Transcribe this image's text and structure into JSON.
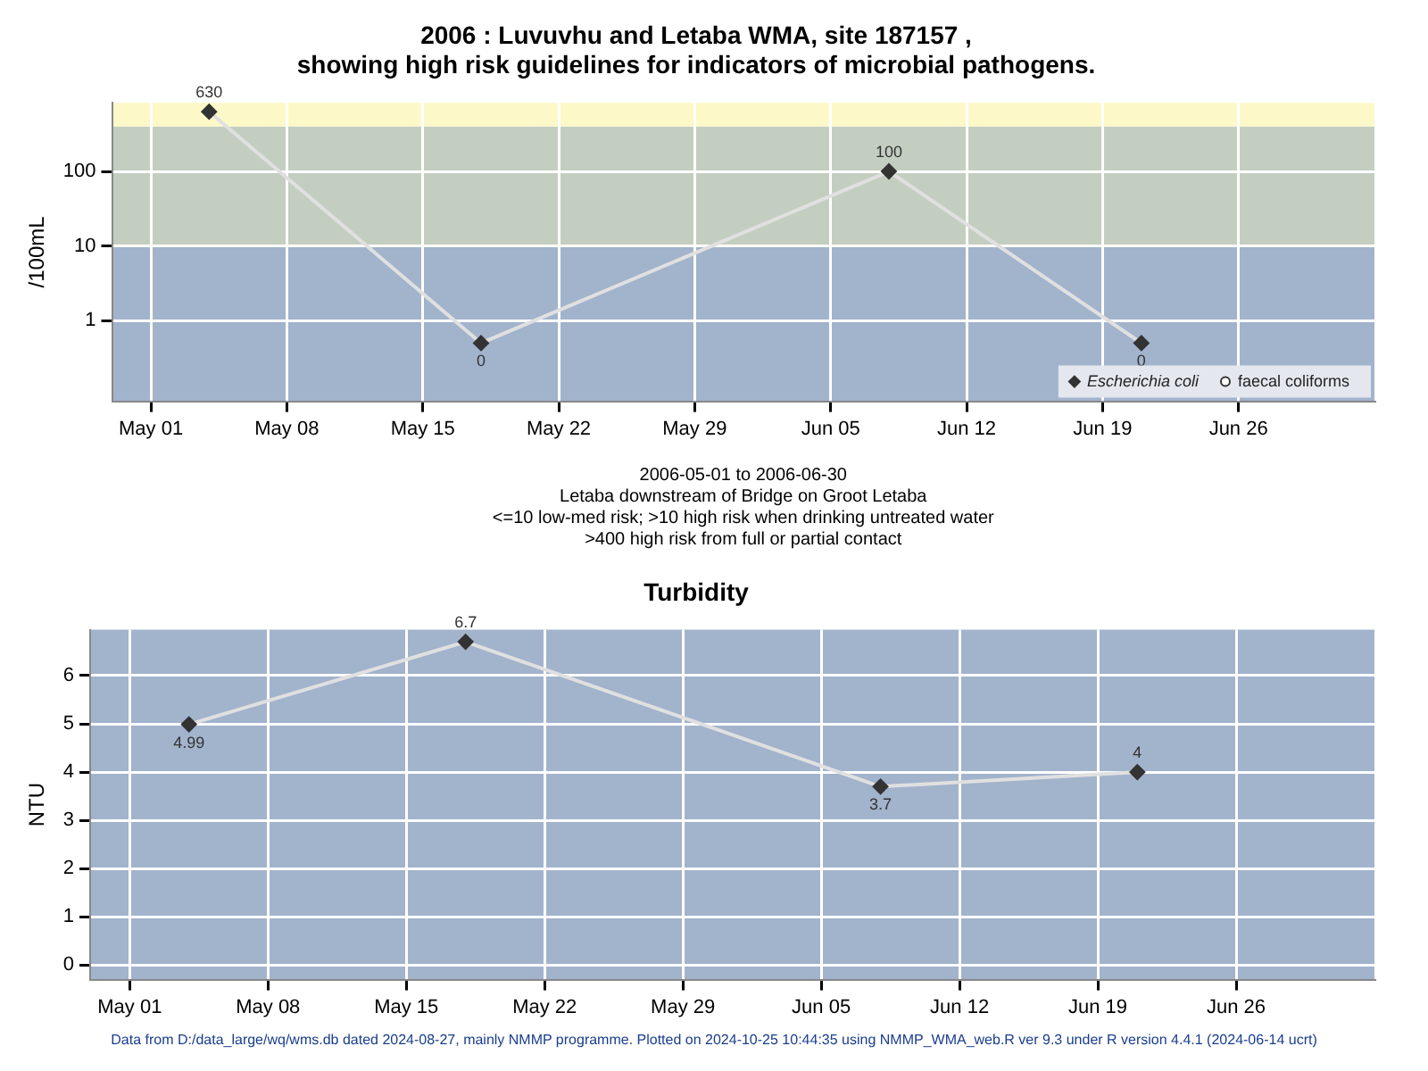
{
  "chart_data": [
    {
      "type": "line",
      "title": "2006 : Luvuvhu and Letaba WMA, site 187157 ,\nshowing high risk guidelines for indicators of microbial pathogens.",
      "xlabel": "2006-05-01 to 2006-06-30\nLetaba downstream of Bridge on Groot Letaba\n<=10 low-med risk; >10 high risk when drinking untreated water\n>400 high risk from full or partial contact",
      "ylabel": "/100mL",
      "x": [
        "2006-05-04",
        "2006-05-18",
        "2006-06-08",
        "2006-06-21"
      ],
      "series": [
        {
          "name": "Escherichia coli",
          "color": "#333333",
          "marker": "diamond",
          "values": [
            630,
            0.5,
            100,
            0.5
          ],
          "value_labels": [
            "630",
            "0",
            "100",
            "0"
          ]
        },
        {
          "name": "faecal coliforms",
          "color": "#333333",
          "marker": "circle",
          "values": [
            null,
            null,
            null,
            null
          ]
        }
      ],
      "log": "y",
      "xlim": [
        "2006-04-29",
        "2006-07-03"
      ],
      "ylim": [
        0.083,
        830
      ],
      "yticks": [
        1,
        10,
        100
      ],
      "xticks": [
        {
          "value": "2006-05-01",
          "label": "May 01"
        },
        {
          "value": "2006-05-08",
          "label": "May 08"
        },
        {
          "value": "2006-05-15",
          "label": "May 15"
        },
        {
          "value": "2006-05-22",
          "label": "May 22"
        },
        {
          "value": "2006-05-29",
          "label": "May 29"
        },
        {
          "value": "2006-06-05",
          "label": "Jun 05"
        },
        {
          "value": "2006-06-12",
          "label": "Jun 12"
        },
        {
          "value": "2006-06-19",
          "label": "Jun 19"
        },
        {
          "value": "2006-06-26",
          "label": "Jun 26"
        }
      ],
      "bands": [
        {
          "axis": "y",
          "from": 0.083,
          "to": 10,
          "color": "#a2b3cc"
        },
        {
          "axis": "y",
          "from": 10,
          "to": 400,
          "color": "#c3cec0"
        },
        {
          "axis": "y",
          "from": 400,
          "to": 830,
          "color": "#fdf8c8"
        }
      ],
      "grid": true,
      "legend": "bottom right"
    },
    {
      "type": "line",
      "title": "Turbidity",
      "ylabel": "NTU",
      "x": [
        "2006-05-04",
        "2006-05-18",
        "2006-06-08",
        "2006-06-21"
      ],
      "series": [
        {
          "color": "#333333",
          "values": [
            4.99,
            6.7,
            3.7,
            4
          ]
        }
      ],
      "marker": "diamond",
      "data_labels": true,
      "xlim": [
        "2006-04-29",
        "2006-07-03"
      ],
      "ylim": [
        -0.3,
        6.95
      ],
      "yticks": [
        0,
        1,
        2,
        3,
        4,
        5,
        6
      ],
      "xticks": [
        {
          "value": "2006-05-01",
          "label": "May 01"
        },
        {
          "value": "2006-05-08",
          "label": "May 08"
        },
        {
          "value": "2006-05-15",
          "label": "May 15"
        },
        {
          "value": "2006-05-22",
          "label": "May 22"
        },
        {
          "value": "2006-05-29",
          "label": "May 29"
        },
        {
          "value": "2006-06-05",
          "label": "Jun 05"
        },
        {
          "value": "2006-06-12",
          "label": "Jun 12"
        },
        {
          "value": "2006-06-19",
          "label": "Jun 19"
        },
        {
          "value": "2006-06-26",
          "label": "Jun 26"
        }
      ],
      "grid": true,
      "annotations": [
        "Data from D:/data_large/wq/wms.db dated 2024-08-27, mainly NMMP programme. Plotted on 2024-10-25 10:44:35 using NMMP_WMA_web.R ver 9.3 under R version 4.4.1 (2024-06-14 ucrt)"
      ]
    }
  ]
}
